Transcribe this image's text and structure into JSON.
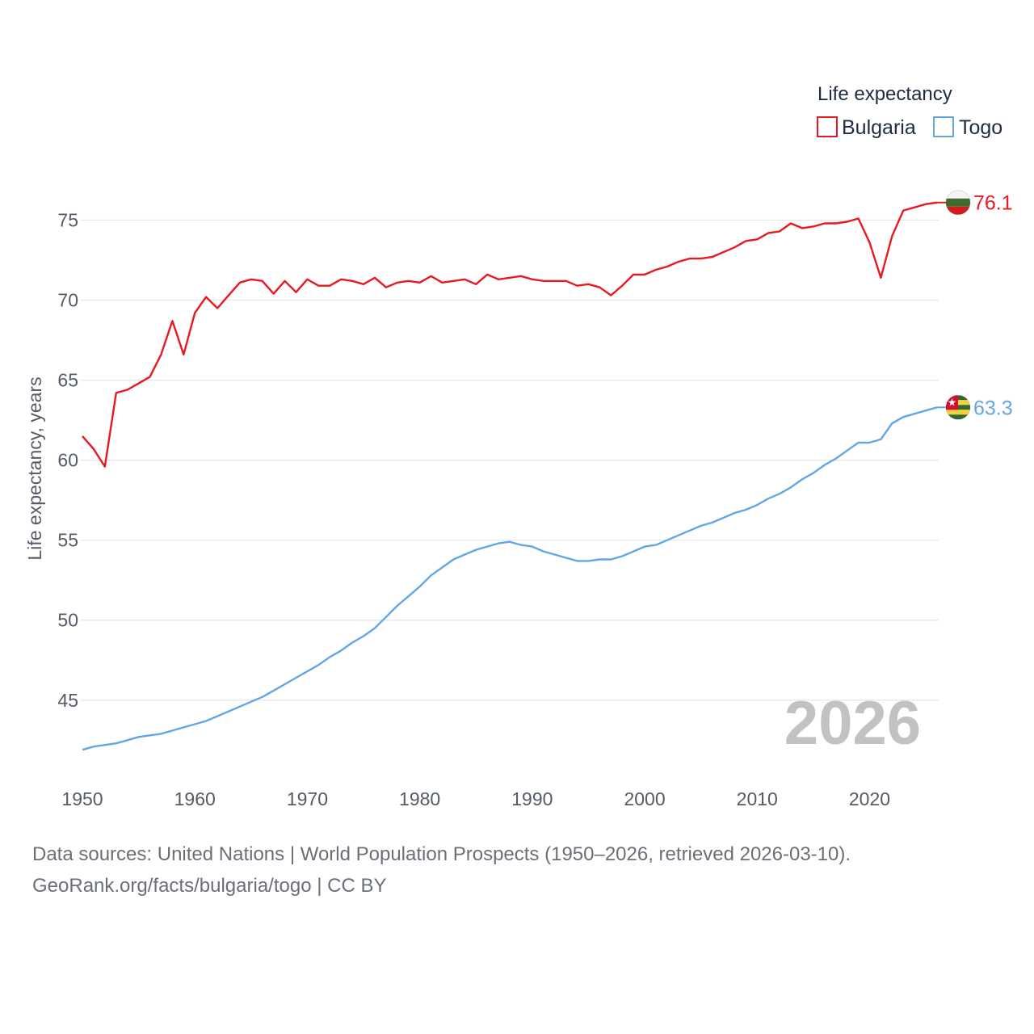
{
  "legend": {
    "title": "Life expectancy"
  },
  "watermark_year": "2026",
  "sources": {
    "line1": "Data sources: United Nations | World Population Prospects (1950–2026, retrieved 2026-03-10).",
    "line2": "GeoRank.org/facts/bulgaria/togo | CC BY"
  },
  "chart_data": {
    "type": "line",
    "title": "Life expectancy",
    "xlabel": "",
    "ylabel": "Life expectancy, years",
    "xlim": [
      1950,
      2026
    ],
    "ylim": [
      41,
      77.5
    ],
    "x_ticks": [
      1950,
      1960,
      1970,
      1980,
      1990,
      2000,
      2010,
      2020
    ],
    "y_ticks": [
      45,
      50,
      55,
      60,
      65,
      70,
      75
    ],
    "grid": true,
    "legend_position": "top-right",
    "series": [
      {
        "name": "Bulgaria",
        "color": "#e8191f",
        "end_label": "76.1",
        "flag": "bulgaria-flag-icon",
        "x": [
          1950,
          1951,
          1952,
          1953,
          1954,
          1955,
          1956,
          1957,
          1958,
          1959,
          1960,
          1961,
          1962,
          1963,
          1964,
          1965,
          1966,
          1967,
          1968,
          1969,
          1970,
          1971,
          1972,
          1973,
          1974,
          1975,
          1976,
          1977,
          1978,
          1979,
          1980,
          1981,
          1982,
          1983,
          1984,
          1985,
          1986,
          1987,
          1988,
          1989,
          1990,
          1991,
          1992,
          1993,
          1994,
          1995,
          1996,
          1997,
          1998,
          1999,
          2000,
          2001,
          2002,
          2003,
          2004,
          2005,
          2006,
          2007,
          2008,
          2009,
          2010,
          2011,
          2012,
          2013,
          2014,
          2015,
          2016,
          2017,
          2018,
          2019,
          2020,
          2021,
          2022,
          2023,
          2024,
          2025,
          2026
        ],
        "values": [
          61.5,
          60.7,
          59.6,
          64.2,
          64.4,
          64.8,
          65.2,
          66.6,
          68.7,
          66.6,
          69.2,
          70.2,
          69.5,
          70.3,
          71.1,
          71.3,
          71.2,
          70.4,
          71.2,
          70.5,
          71.3,
          70.9,
          70.9,
          71.3,
          71.2,
          71.0,
          71.4,
          70.8,
          71.1,
          71.2,
          71.1,
          71.5,
          71.1,
          71.2,
          71.3,
          71.0,
          71.6,
          71.3,
          71.4,
          71.5,
          71.3,
          71.2,
          71.2,
          71.2,
          70.9,
          71.0,
          70.8,
          70.3,
          70.9,
          71.6,
          71.6,
          71.9,
          72.1,
          72.4,
          72.6,
          72.6,
          72.7,
          73.0,
          73.3,
          73.7,
          73.8,
          74.2,
          74.3,
          74.8,
          74.5,
          74.6,
          74.8,
          74.8,
          74.9,
          75.1,
          73.6,
          71.4,
          74.0,
          75.6,
          75.8,
          76.0,
          76.1
        ]
      },
      {
        "name": "Togo",
        "color": "#62a6e6",
        "end_label": "63.3",
        "flag": "togo-flag-icon",
        "x": [
          1950,
          1951,
          1952,
          1953,
          1954,
          1955,
          1956,
          1957,
          1958,
          1959,
          1960,
          1961,
          1962,
          1963,
          1964,
          1965,
          1966,
          1967,
          1968,
          1969,
          1970,
          1971,
          1972,
          1973,
          1974,
          1975,
          1976,
          1977,
          1978,
          1979,
          1980,
          1981,
          1982,
          1983,
          1984,
          1985,
          1986,
          1987,
          1988,
          1989,
          1990,
          1991,
          1992,
          1993,
          1994,
          1995,
          1996,
          1997,
          1998,
          1999,
          2000,
          2001,
          2002,
          2003,
          2004,
          2005,
          2006,
          2007,
          2008,
          2009,
          2010,
          2011,
          2012,
          2013,
          2014,
          2015,
          2016,
          2017,
          2018,
          2019,
          2020,
          2021,
          2022,
          2023,
          2024,
          2025,
          2026
        ],
        "values": [
          41.9,
          42.1,
          42.2,
          42.3,
          42.5,
          42.7,
          42.8,
          42.9,
          43.1,
          43.3,
          43.5,
          43.7,
          44.0,
          44.3,
          44.6,
          44.9,
          45.2,
          45.6,
          46.0,
          46.4,
          46.8,
          47.2,
          47.7,
          48.1,
          48.6,
          49.0,
          49.5,
          50.2,
          50.9,
          51.5,
          52.1,
          52.8,
          53.3,
          53.8,
          54.1,
          54.4,
          54.6,
          54.8,
          54.9,
          54.7,
          54.6,
          54.3,
          54.1,
          53.9,
          53.7,
          53.7,
          53.8,
          53.8,
          54.0,
          54.3,
          54.6,
          54.7,
          55.0,
          55.3,
          55.6,
          55.9,
          56.1,
          56.4,
          56.7,
          56.9,
          57.2,
          57.6,
          57.9,
          58.3,
          58.8,
          59.2,
          59.7,
          60.1,
          60.6,
          61.1,
          61.1,
          61.3,
          62.3,
          62.7,
          62.9,
          63.1,
          63.3
        ]
      }
    ]
  }
}
